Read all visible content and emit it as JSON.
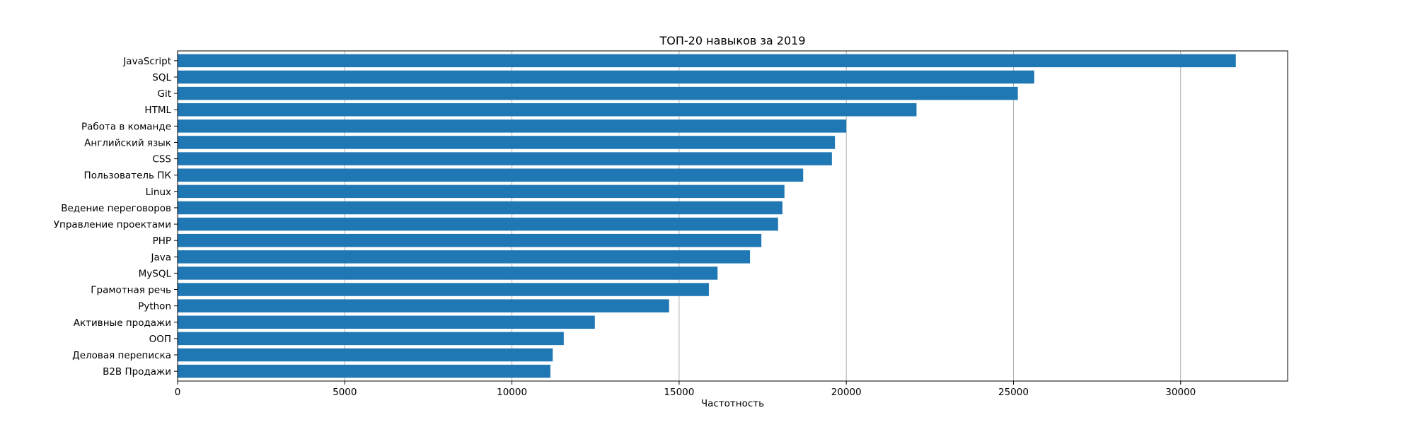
{
  "chart_data": {
    "type": "bar",
    "orientation": "horizontal",
    "title": "ТОП-20 навыков за 2019",
    "xlabel": "Частотность",
    "ylabel": "",
    "xlim": [
      0,
      33200
    ],
    "xticks": [
      0,
      5000,
      10000,
      15000,
      20000,
      25000,
      30000
    ],
    "grid": "x",
    "bar_color": "#1f77b4",
    "categories": [
      "JavaScript",
      "SQL",
      "Git",
      "HTML",
      "Работа в команде",
      "Английский язык",
      "CSS",
      "Пользователь ПК",
      "Linux",
      "Ведение переговоров",
      "Управление проектами",
      "PHP",
      "Java",
      "MySQL",
      "Грамотная речь",
      "Python",
      "Активные продажи",
      "ООП",
      "Деловая переписка",
      "B2B Продажи"
    ],
    "values": [
      31650,
      25620,
      25130,
      22100,
      20000,
      19660,
      19570,
      18710,
      18150,
      18090,
      17960,
      17460,
      17120,
      16150,
      15890,
      14700,
      12480,
      11550,
      11220,
      11150
    ]
  }
}
